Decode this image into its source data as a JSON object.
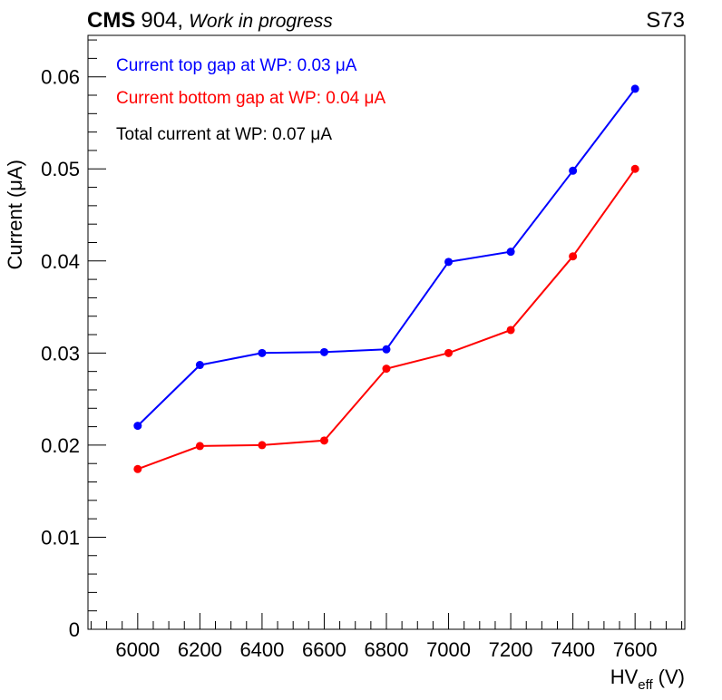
{
  "header": {
    "experiment": "CMS",
    "site": "904,",
    "status": "Work in progress",
    "chamber": "S73"
  },
  "chart_data": {
    "type": "line",
    "title": "",
    "xlabel": "HV",
    "xlabel_sub": "eff",
    "xlabel_unit": "(V)",
    "ylabel": "Current (μA)",
    "xlim": [
      5840,
      7760
    ],
    "ylim": [
      0,
      0.0645
    ],
    "x_ticks": [
      6000,
      6200,
      6400,
      6600,
      6800,
      7000,
      7200,
      7400,
      7600
    ],
    "x_tick_labels": [
      "6000",
      "6200",
      "6400",
      "6600",
      "6800",
      "7000",
      "7200",
      "7400",
      "7600"
    ],
    "y_ticks": [
      0,
      0.01,
      0.02,
      0.03,
      0.04,
      0.05,
      0.06
    ],
    "y_tick_labels": [
      "0",
      "0.01",
      "0.02",
      "0.03",
      "0.04",
      "0.05",
      "0.06"
    ],
    "grid": false,
    "x": [
      6000,
      6200,
      6400,
      6600,
      6800,
      7000,
      7200,
      7400,
      7600
    ],
    "series": [
      {
        "values": [
          0.0221,
          0.0287,
          0.03,
          0.0301,
          0.0304,
          0.0399,
          0.041,
          0.0498,
          0.0587
        ],
        "color": "#0000ff"
      },
      {
        "values": [
          0.0174,
          0.0199,
          0.02,
          0.0205,
          0.0283,
          0.03,
          0.0325,
          0.0405,
          0.05
        ],
        "color": "#ff0000"
      }
    ],
    "annotations": [
      {
        "text": "Current top gap at WP: 0.03 μA",
        "color": "#0000ff"
      },
      {
        "text": "Current bottom gap at WP: 0.04 μA",
        "color": "#ff0000"
      },
      {
        "text": "Total current at WP: 0.07 μA",
        "color": "#000000"
      }
    ]
  }
}
